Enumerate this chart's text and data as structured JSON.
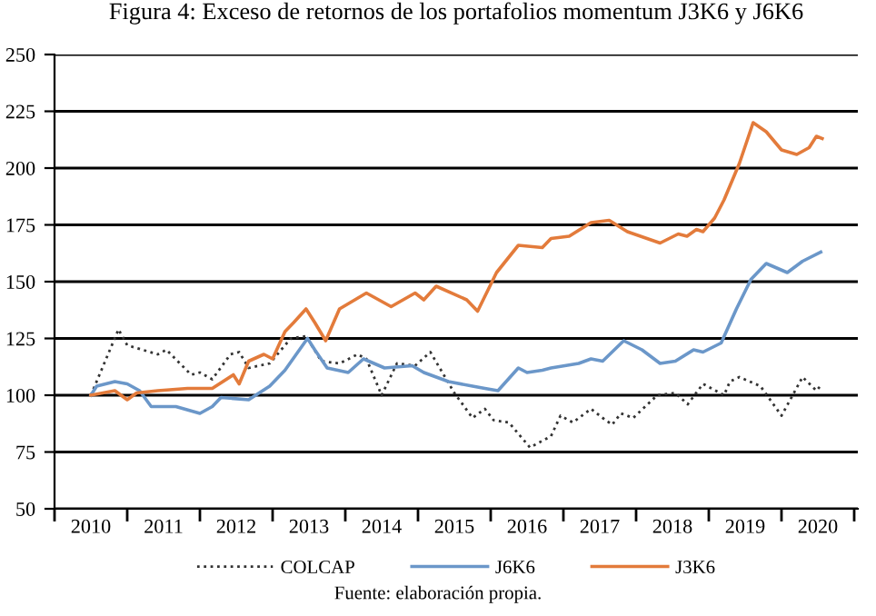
{
  "chart_data": {
    "type": "line",
    "title": "Figura 4: Exceso de retornos de los portafolios momentum J3K6 y J6K6",
    "annotations": [
      "Fuente: elaboración propia."
    ],
    "xlim": [
      2009.5,
      2020.55
    ],
    "ylim": [
      50,
      250
    ],
    "yticks": [
      50,
      75,
      100,
      125,
      150,
      175,
      200,
      225,
      250
    ],
    "xticks": [
      {
        "value": 2009.5,
        "label": null
      },
      {
        "value": 2010,
        "label": "2010"
      },
      {
        "value": 2010.5,
        "label": null
      },
      {
        "value": 2011,
        "label": "2011"
      },
      {
        "value": 2011.5,
        "label": null
      },
      {
        "value": 2012,
        "label": "2012"
      },
      {
        "value": 2012.5,
        "label": null
      },
      {
        "value": 2013,
        "label": "2013"
      },
      {
        "value": 2013.5,
        "label": null
      },
      {
        "value": 2014,
        "label": "2014"
      },
      {
        "value": 2014.5,
        "label": null
      },
      {
        "value": 2015,
        "label": "2015"
      },
      {
        "value": 2015.5,
        "label": null
      },
      {
        "value": 2016,
        "label": "2016"
      },
      {
        "value": 2016.5,
        "label": null
      },
      {
        "value": 2017,
        "label": "2017"
      },
      {
        "value": 2017.5,
        "label": null
      },
      {
        "value": 2018,
        "label": "2018"
      },
      {
        "value": 2018.5,
        "label": null
      },
      {
        "value": 2019,
        "label": "2019"
      },
      {
        "value": 2019.5,
        "label": null
      },
      {
        "value": 2020,
        "label": "2020"
      },
      {
        "value": 2020.5,
        "label": null
      }
    ],
    "grid": "y",
    "legend": "bottom",
    "marker": "none",
    "series": [
      {
        "name": "COLCAP",
        "color": "#333333",
        "line_style": "dotted",
        "x": [
          2010,
          2010.38,
          2010.5,
          2010.92,
          2011.04,
          2011.38,
          2011.5,
          2011.67,
          2011.92,
          2012.04,
          2012.17,
          2012.46,
          2012.75,
          2012.96,
          2013.17,
          2013.42,
          2013.67,
          2013.79,
          2014.0,
          2014.21,
          2014.46,
          2014.67,
          2015.0,
          2015.25,
          2015.42,
          2015.54,
          2015.75,
          2016.04,
          2016.33,
          2016.46,
          2016.63,
          2016.88,
          2017.04,
          2017.17,
          2017.29,
          2017.46,
          2017.79,
          2018.04,
          2018.21,
          2018.42,
          2018.71,
          2018.79,
          2018.92,
          2019.21,
          2019.5,
          2019.79,
          2019.98,
          2020.06
        ],
        "values": [
          100,
          129,
          122,
          118,
          120,
          109,
          110,
          107,
          118,
          119,
          112,
          114,
          125,
          126,
          115,
          114,
          118,
          116,
          100,
          114,
          113,
          119,
          101,
          90,
          94,
          89,
          88,
          77,
          82,
          91,
          88,
          94,
          90,
          87,
          92,
          90,
          100,
          101,
          96,
          105,
          100,
          106,
          108,
          104,
          91,
          108,
          102,
          105
        ]
      },
      {
        "name": "J6K6",
        "color": "#6b97c9",
        "line_style": "solid",
        "x": [
          2010,
          2010.08,
          2010.33,
          2010.5,
          2010.67,
          2010.83,
          2011.17,
          2011.5,
          2011.67,
          2011.79,
          2012.17,
          2012.46,
          2012.67,
          2012.98,
          2013.08,
          2013.25,
          2013.54,
          2013.75,
          2014.04,
          2014.42,
          2014.58,
          2014.92,
          2015.25,
          2015.42,
          2015.6,
          2015.88,
          2016.0,
          2016.21,
          2016.33,
          2016.71,
          2016.88,
          2017.04,
          2017.33,
          2017.58,
          2017.83,
          2018.04,
          2018.29,
          2018.42,
          2018.67,
          2018.88,
          2019.08,
          2019.29,
          2019.58,
          2019.79,
          2020.04
        ],
        "values": [
          100,
          104,
          106,
          105,
          102,
          95,
          95,
          92,
          95,
          99,
          98,
          104,
          111,
          125,
          120,
          112,
          110,
          116,
          112,
          113,
          110,
          106,
          104,
          103,
          102,
          112,
          110,
          111,
          112,
          114,
          116,
          115,
          124,
          120,
          114,
          115,
          120,
          119,
          123,
          138,
          151,
          158,
          154,
          159,
          163
        ]
      },
      {
        "name": "J3K6",
        "color": "#e37b3b",
        "line_style": "solid",
        "x": [
          2010,
          2010.33,
          2010.5,
          2010.63,
          2010.92,
          2011.33,
          2011.67,
          2011.96,
          2012.04,
          2012.17,
          2012.38,
          2012.5,
          2012.67,
          2012.79,
          2012.96,
          2013.08,
          2013.23,
          2013.42,
          2013.79,
          2014.13,
          2014.46,
          2014.58,
          2014.75,
          2015.17,
          2015.32,
          2015.58,
          2015.88,
          2016.21,
          2016.33,
          2016.58,
          2016.88,
          2017.13,
          2017.38,
          2017.83,
          2018.08,
          2018.2,
          2018.33,
          2018.42,
          2018.58,
          2018.71,
          2018.92,
          2019.11,
          2019.29,
          2019.5,
          2019.71,
          2019.88,
          2019.98,
          2020.06
        ],
        "values": [
          100,
          102,
          98,
          101,
          102,
          103,
          103,
          109,
          105,
          115,
          118,
          116,
          128,
          132,
          138,
          132,
          124,
          138,
          145,
          139,
          145,
          142,
          148,
          142,
          137,
          154,
          166,
          165,
          169,
          170,
          176,
          177,
          172,
          167,
          171,
          170,
          173,
          172,
          178,
          186,
          202,
          220,
          216,
          208,
          206,
          209,
          214,
          213
        ]
      }
    ]
  }
}
